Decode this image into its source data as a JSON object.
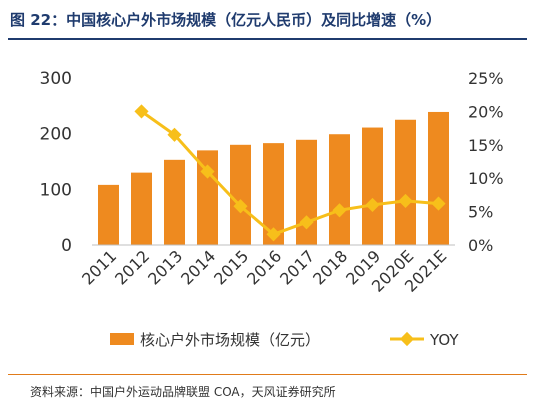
{
  "figure": {
    "title": "图 22：中国核心户外市场规模（亿元人民币）及同比增速（%）",
    "source": "资料来源：中国户外运动品牌联盟 COA，天风证券研究所"
  },
  "chart_data": {
    "type": "bar",
    "categories": [
      "2011",
      "2012",
      "2013",
      "2014",
      "2015",
      "2016",
      "2017",
      "2018",
      "2019",
      "2020E",
      "2021E"
    ],
    "series": [
      {
        "name": "核心户外市场规模（亿元）",
        "type": "bar",
        "axis": "left",
        "values": [
          108,
          130,
          153,
          170,
          180,
          183,
          189,
          199,
          211,
          225,
          239
        ]
      },
      {
        "name": "YOY",
        "type": "line",
        "axis": "right",
        "values": [
          null,
          20.0,
          16.5,
          11.0,
          5.8,
          1.6,
          3.4,
          5.2,
          6.0,
          6.6,
          6.2
        ]
      }
    ],
    "y_left": {
      "min": 0,
      "max": 300,
      "ticks": [
        "0",
        "100",
        "200",
        "300"
      ]
    },
    "y_right": {
      "min": 0,
      "max": 25,
      "ticks": [
        "0%",
        "5%",
        "10%",
        "15%",
        "20%",
        "25%"
      ]
    },
    "legend_position": "bottom",
    "grid": false,
    "colors": {
      "bar": "#ee8a1f",
      "line": "#f7bf1a",
      "title": "#1f3b6e",
      "rule": "#e07b1a"
    }
  }
}
